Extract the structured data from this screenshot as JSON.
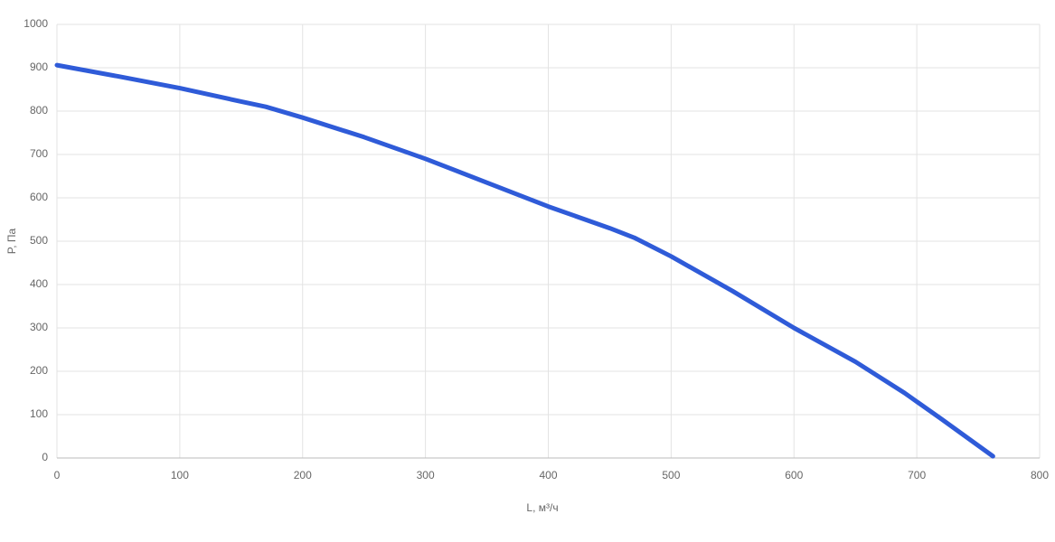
{
  "chart_data": {
    "type": "line",
    "x_label": "L, м³/ч",
    "y_label": "P, Па",
    "x": [
      0,
      50,
      100,
      150,
      170,
      200,
      250,
      300,
      350,
      400,
      450,
      470,
      500,
      550,
      600,
      650,
      690,
      720,
      762
    ],
    "series": [
      {
        "color": "#2f5bd8",
        "values": [
          906,
          880,
          853,
          822,
          810,
          785,
          740,
          690,
          635,
          580,
          530,
          508,
          465,
          385,
          300,
          222,
          150,
          90,
          4
        ]
      }
    ],
    "xlim": [
      0,
      800
    ],
    "xticks": [
      0,
      100,
      200,
      300,
      400,
      500,
      600,
      700,
      800
    ],
    "ylim": [
      0,
      1000
    ],
    "yticks": [
      0,
      100,
      200,
      300,
      400,
      500,
      600,
      700,
      800,
      900,
      1000
    ],
    "grid": true
  }
}
